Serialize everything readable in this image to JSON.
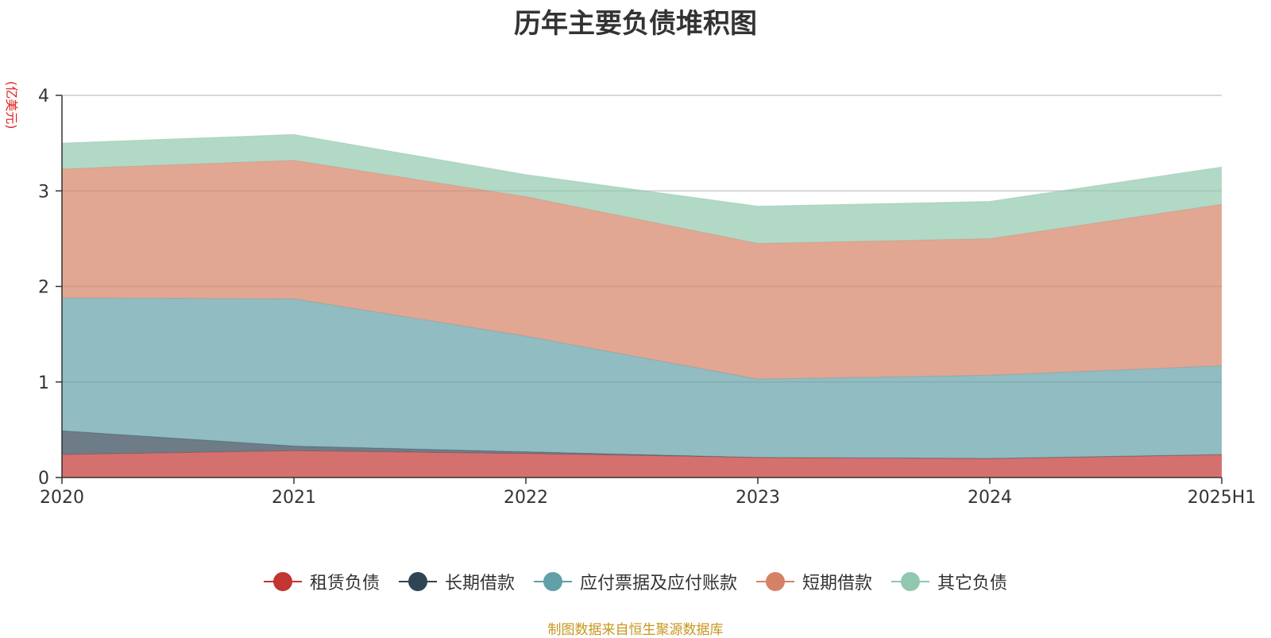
{
  "chart_data": {
    "type": "area",
    "stacked": true,
    "title": "历年主要负债堆积图",
    "unit_label": "(亿美元)",
    "categories": [
      "2020",
      "2021",
      "2022",
      "2023",
      "2024",
      "2025H1"
    ],
    "ylim": [
      0,
      4
    ],
    "yticks": [
      "0",
      "1",
      "2",
      "3",
      "4"
    ],
    "grid": true,
    "legend_position": "bottom",
    "series": [
      {
        "name": "租赁负债",
        "color": "#c23531",
        "values": [
          0.24,
          0.28,
          0.25,
          0.21,
          0.2,
          0.24
        ]
      },
      {
        "name": "长期借款",
        "color": "#2f4554",
        "values": [
          0.25,
          0.05,
          0.02,
          0.0,
          0.0,
          0.0
        ]
      },
      {
        "name": "应付票据及应付账款",
        "color": "#61a0a8",
        "values": [
          1.39,
          1.54,
          1.21,
          0.82,
          0.87,
          0.93
        ]
      },
      {
        "name": "短期借款",
        "color": "#d48265",
        "values": [
          1.35,
          1.45,
          1.46,
          1.42,
          1.43,
          1.69
        ]
      },
      {
        "name": "其它负债",
        "color": "#91c7ae",
        "values": [
          0.27,
          0.27,
          0.23,
          0.39,
          0.39,
          0.39
        ]
      }
    ],
    "source": "制图数据来自恒生聚源数据库"
  }
}
